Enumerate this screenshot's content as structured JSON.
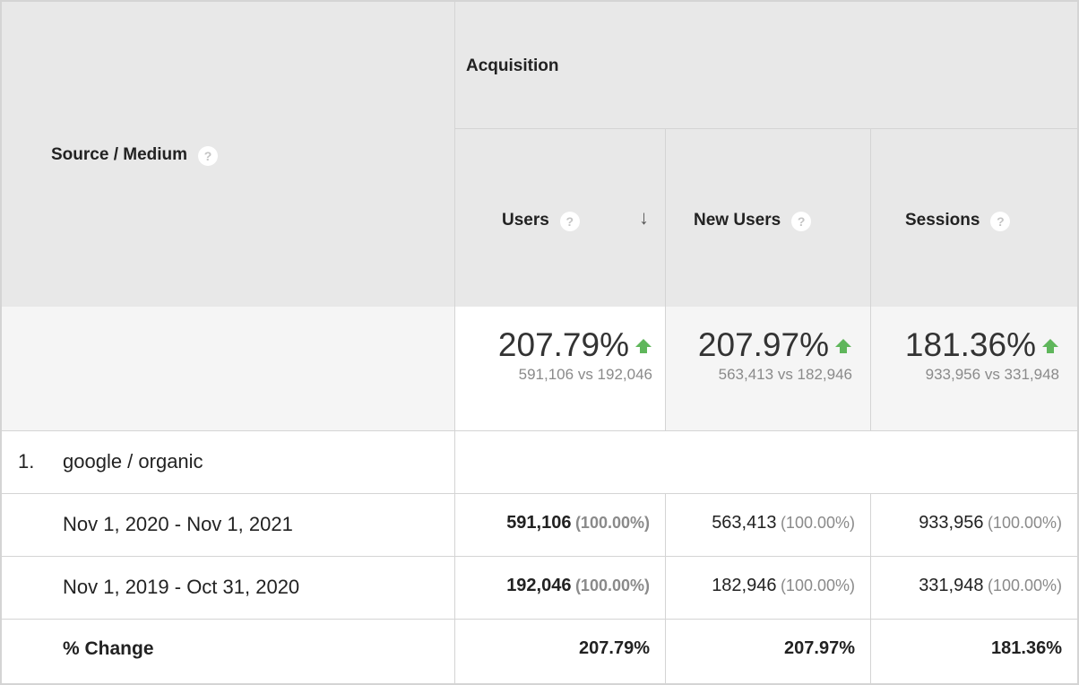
{
  "header": {
    "source_medium_label": "Source / Medium",
    "group_label": "Acquisition",
    "columns": [
      {
        "label": "Users",
        "sorted_desc": true
      },
      {
        "label": "New Users"
      },
      {
        "label": "Sessions"
      }
    ],
    "help_glyph": "?",
    "sort_glyph": "↓"
  },
  "summary": [
    {
      "change": "207.79%",
      "comparison": "591,106 vs 192,046",
      "trend": "up"
    },
    {
      "change": "207.97%",
      "comparison": "563,413 vs 182,946",
      "trend": "up"
    },
    {
      "change": "181.36%",
      "comparison": "933,956 vs 331,948",
      "trend": "up"
    }
  ],
  "group_row": {
    "index": "1.",
    "label": "google / organic"
  },
  "date_rows": [
    {
      "label": "Nov 1, 2020 - Nov 1, 2021",
      "values": [
        {
          "value": "591,106",
          "pct": "(100.00%)"
        },
        {
          "value": "563,413",
          "pct": "(100.00%)"
        },
        {
          "value": "933,956",
          "pct": "(100.00%)"
        }
      ]
    },
    {
      "label": "Nov 1, 2019 - Oct 31, 2020",
      "values": [
        {
          "value": "192,046",
          "pct": "(100.00%)"
        },
        {
          "value": "182,946",
          "pct": "(100.00%)"
        },
        {
          "value": "331,948",
          "pct": "(100.00%)"
        }
      ]
    }
  ],
  "change_row": {
    "label": "% Change",
    "values": [
      "207.79%",
      "207.97%",
      "181.36%"
    ]
  },
  "colors": {
    "header_bg": "#e8e8e8",
    "summary_bg": "#f5f5f5",
    "up_arrow": "#5fb65b",
    "border": "#d4d4d4"
  },
  "icons": {
    "help": "question-circle-icon",
    "sort": "arrow-down-icon",
    "trend_up": "arrow-up-icon"
  }
}
